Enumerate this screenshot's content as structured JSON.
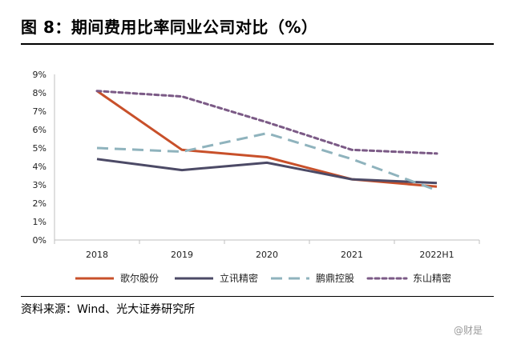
{
  "figure": {
    "title": "图 8：期间费用比率同业公司对比（%）",
    "source": "资料来源：Wind、光大证券研究所",
    "watermark": "@财是"
  },
  "chart_data": {
    "type": "line",
    "title": "",
    "xlabel": "",
    "ylabel": "",
    "categories": [
      "2018",
      "2019",
      "2020",
      "2021",
      "2022H1"
    ],
    "yticks": [
      "0%",
      "1%",
      "2%",
      "3%",
      "4%",
      "5%",
      "6%",
      "7%",
      "8%",
      "9%"
    ],
    "ylim": [
      0,
      9
    ],
    "grid": false,
    "legend_position": "bottom",
    "series": [
      {
        "name": "歌尔股份",
        "values": [
          8.1,
          4.9,
          4.5,
          3.3,
          2.9
        ],
        "color": "#c8502a",
        "style": "solid"
      },
      {
        "name": "立讯精密",
        "values": [
          4.4,
          3.8,
          4.2,
          3.3,
          3.1
        ],
        "color": "#4c4a66",
        "style": "solid"
      },
      {
        "name": "鹏鼎控股",
        "values": [
          5.0,
          4.8,
          5.8,
          4.4,
          2.7
        ],
        "color": "#8fb3bd",
        "style": "dashed"
      },
      {
        "name": "东山精密",
        "values": [
          8.1,
          7.8,
          6.4,
          4.9,
          4.7
        ],
        "color": "#7b5a86",
        "style": "dotted"
      }
    ]
  }
}
